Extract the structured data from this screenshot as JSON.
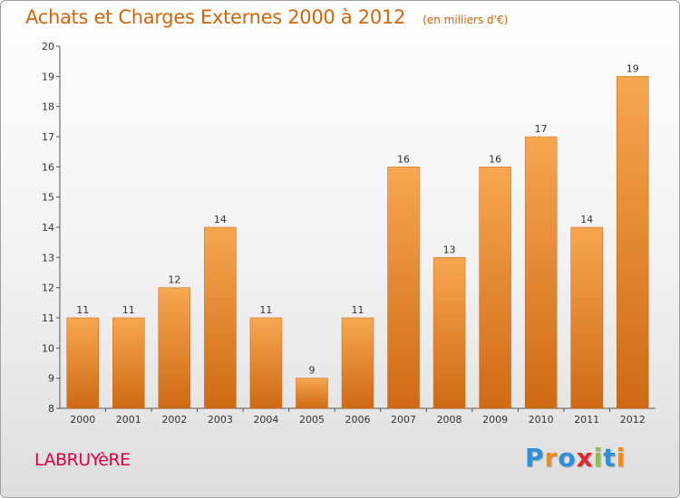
{
  "chart_data": {
    "type": "bar",
    "title": "Achats et Charges Externes 2000 à 2012",
    "subtitle": "(en milliers d'€)",
    "categories": [
      "2000",
      "2001",
      "2002",
      "2003",
      "2004",
      "2005",
      "2006",
      "2007",
      "2008",
      "2009",
      "2010",
      "2011",
      "2012"
    ],
    "values": [
      11,
      11,
      12,
      14,
      11,
      9,
      11,
      16,
      13,
      16,
      17,
      14,
      19
    ],
    "ylim": [
      8,
      20
    ],
    "yticks": [
      8,
      9,
      10,
      11,
      12,
      13,
      14,
      15,
      16,
      17,
      18,
      19,
      20
    ],
    "grid": false,
    "bar_color_top": "#f7a650",
    "bar_color_bottom": "#cf6a14",
    "title_color": "#d4640a"
  },
  "footer": {
    "town": "LABRUYèRE",
    "town_color": "#e0003e",
    "brand": "Proxiti"
  }
}
